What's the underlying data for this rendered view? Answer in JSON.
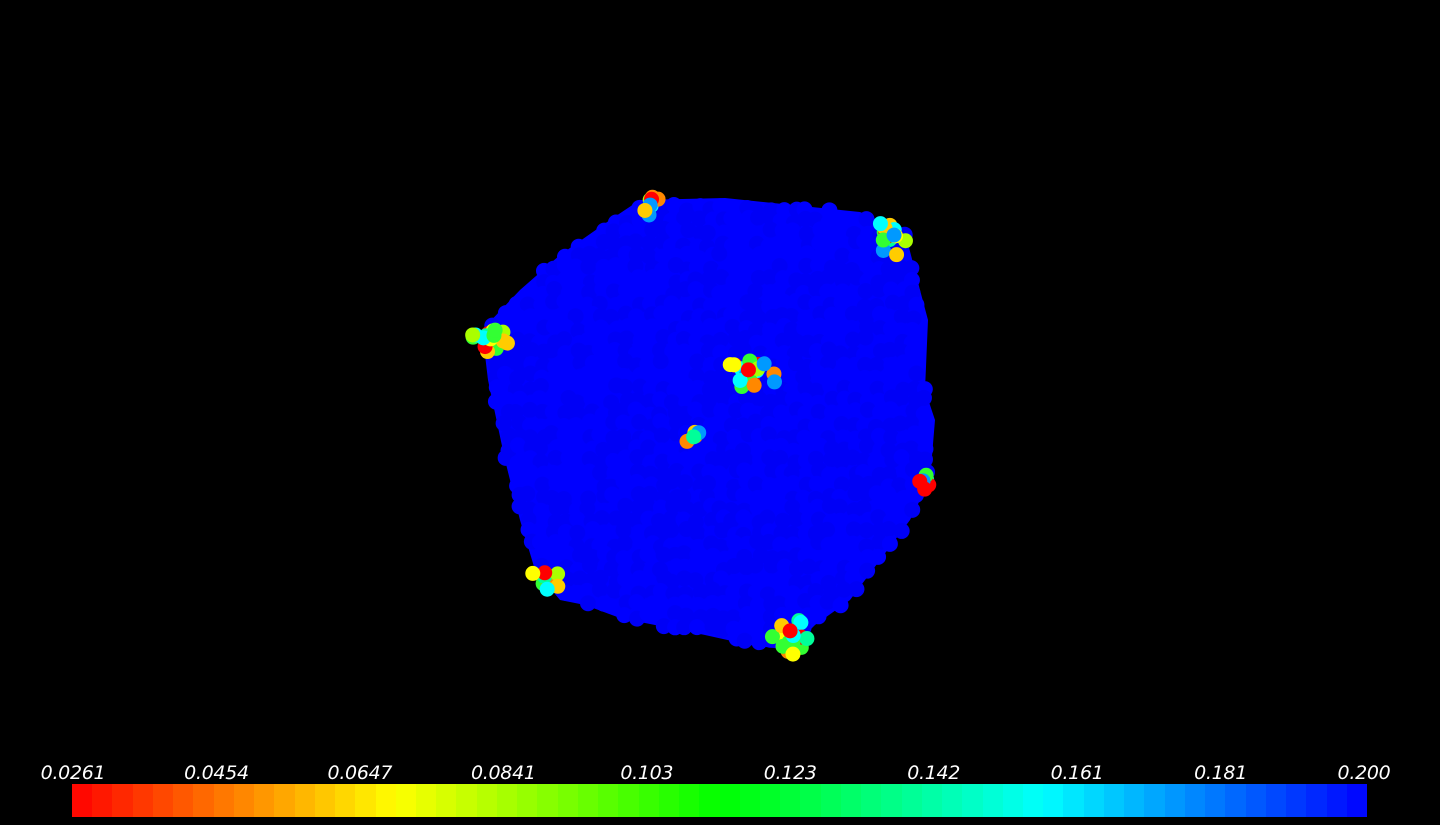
{
  "viewer": {
    "background": "#000000",
    "object": "particle-cluster"
  },
  "colormap": {
    "name": "rainbow",
    "reversed": true,
    "min": 0.0261,
    "max": 0.2,
    "labels": [
      "0.0261",
      "0.0454",
      "0.0647",
      "0.0841",
      "0.103",
      "0.123",
      "0.142",
      "0.161",
      "0.181",
      "0.200"
    ],
    "stops": [
      "#ff0000",
      "#ffff00",
      "#00ff00",
      "#00ffff",
      "#0000ff"
    ],
    "segments": 64
  }
}
